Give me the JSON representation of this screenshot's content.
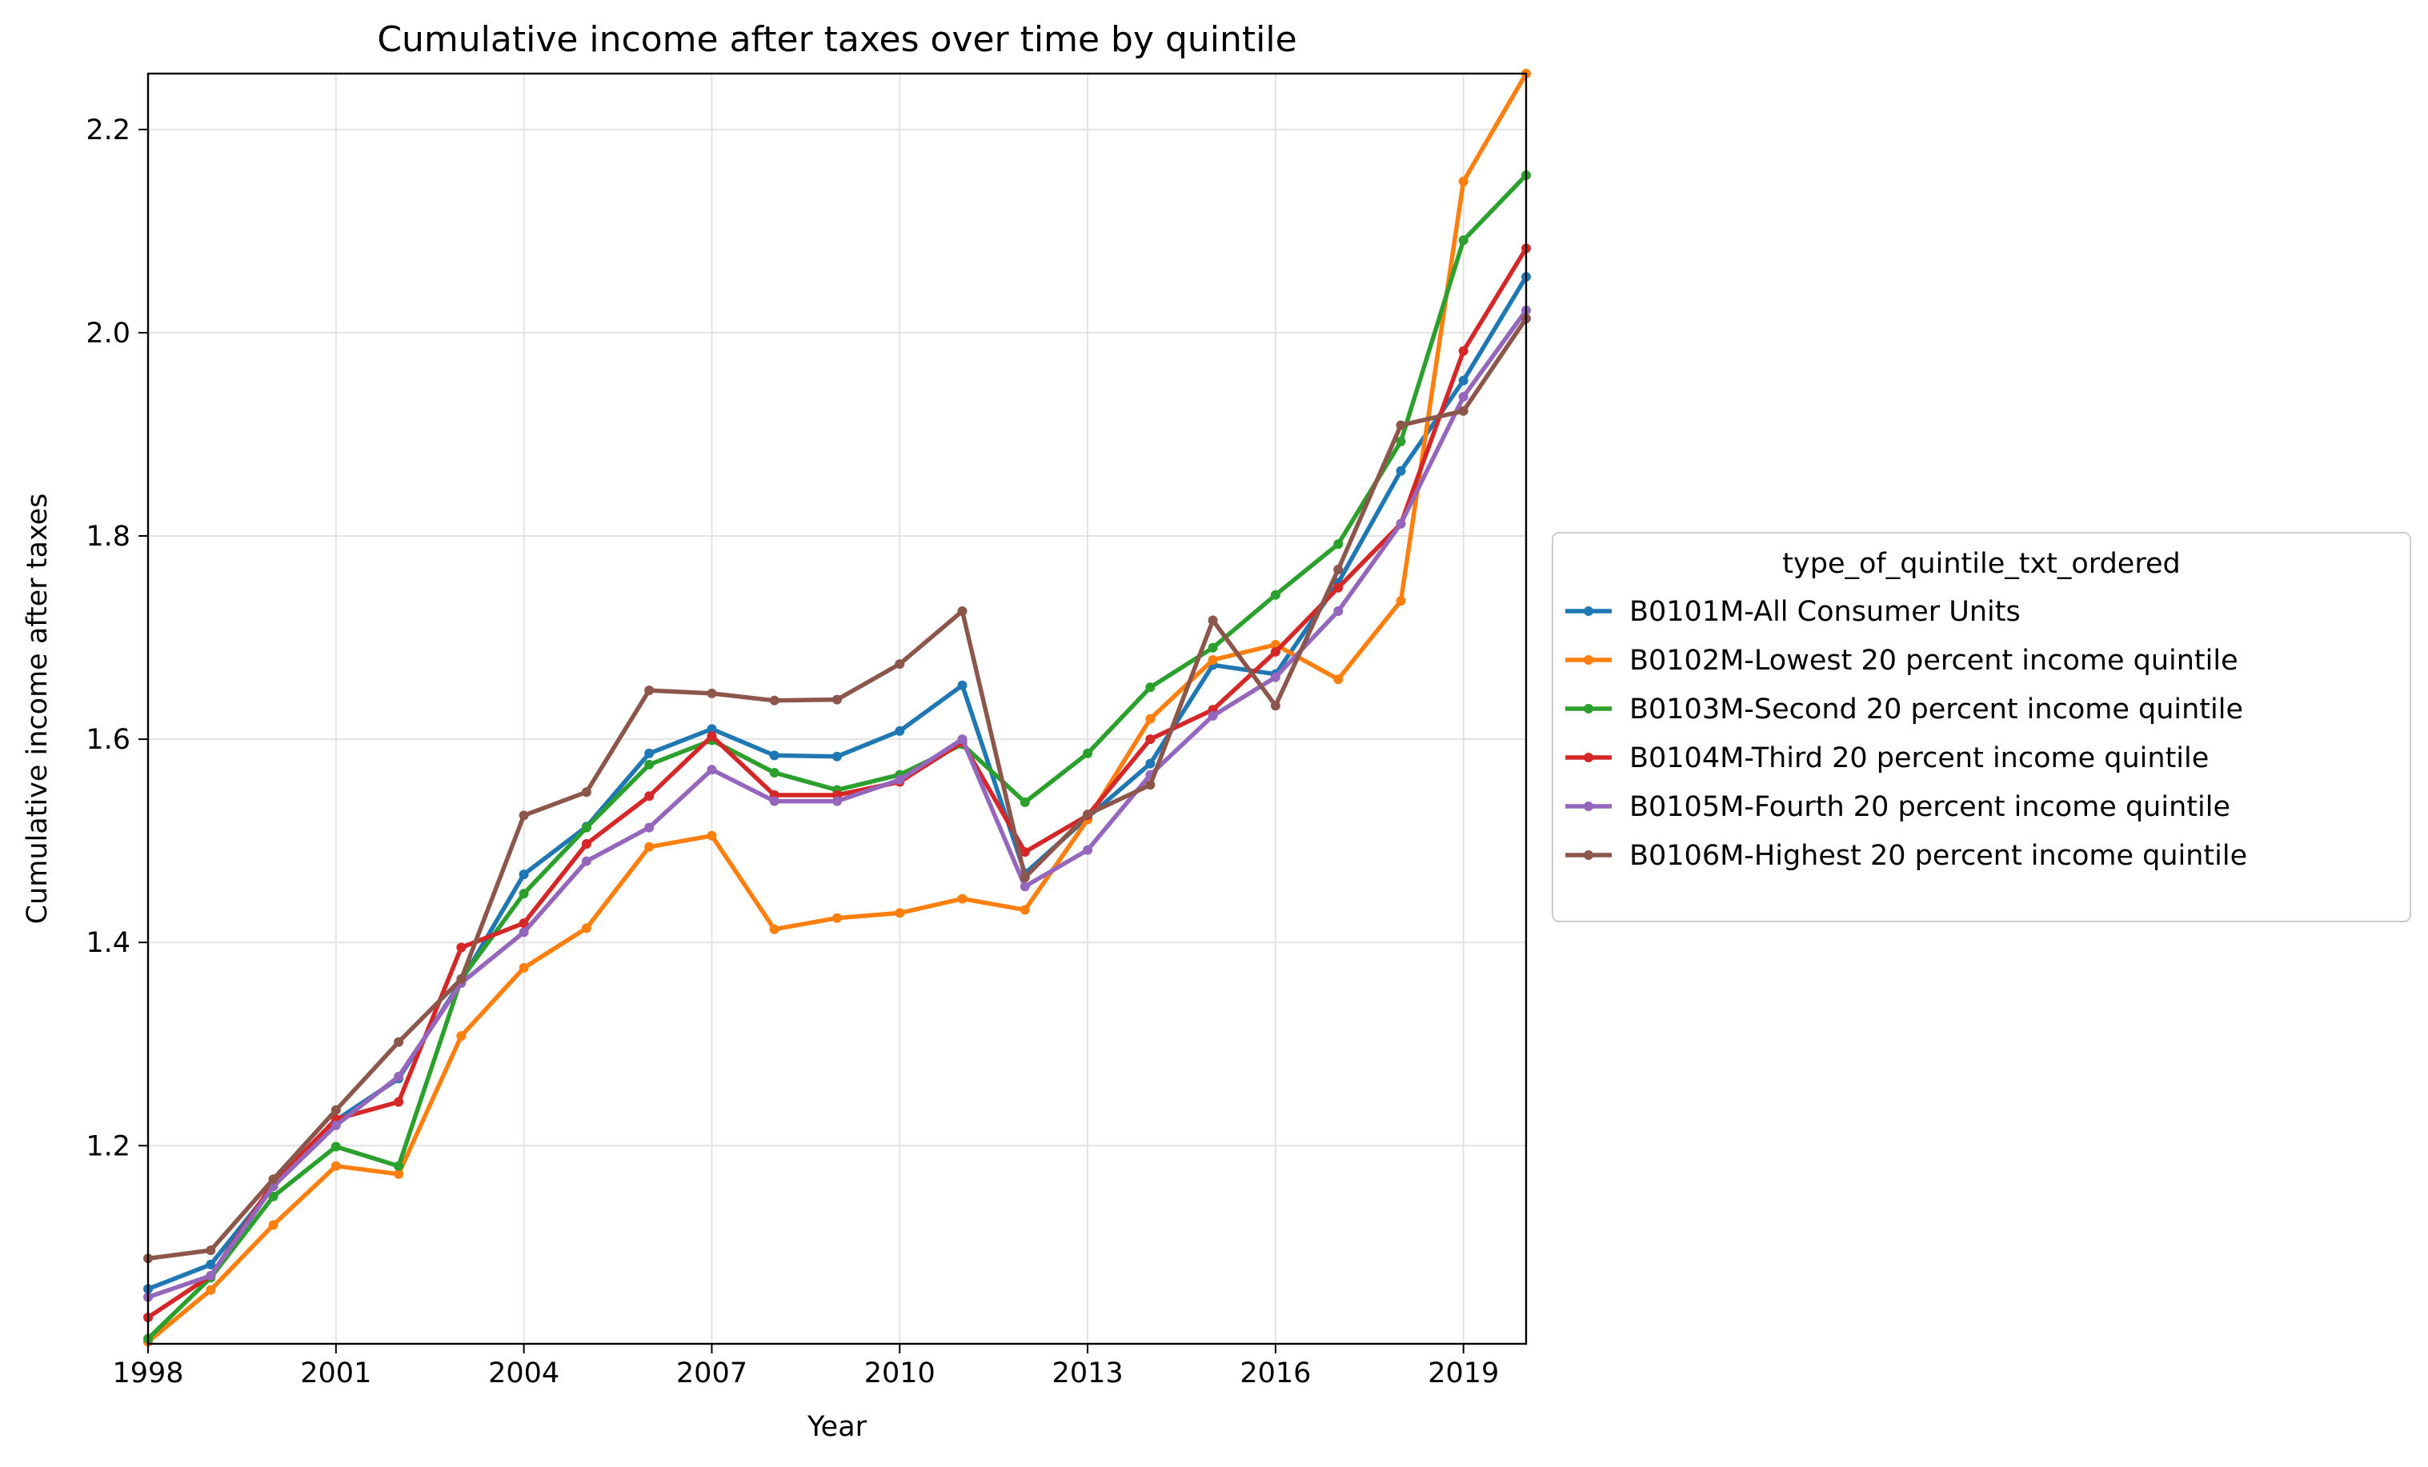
{
  "chart_data": {
    "type": "line",
    "title": "Cumulative income after taxes over time by quintile",
    "xlabel": "Year",
    "ylabel": "Cumulative income after taxes",
    "xlim": [
      1998,
      2020
    ],
    "ylim": [
      1.005,
      2.255
    ],
    "xticks": [
      1998,
      2001,
      2004,
      2007,
      2010,
      2013,
      2016,
      2019
    ],
    "xtick_labels": [
      "1998",
      "2001",
      "2004",
      "2007",
      "2010",
      "2013",
      "2016",
      "2019"
    ],
    "yticks": [
      1.2,
      1.4,
      1.6,
      1.8,
      2.0,
      2.2
    ],
    "ytick_labels": [
      "1.2",
      "1.4",
      "1.6",
      "1.8",
      "2.0",
      "2.2"
    ],
    "grid": true,
    "legend": {
      "title": "type_of_quintile_txt_ordered",
      "placement": "outside-right"
    },
    "x": [
      1998,
      1999,
      2000,
      2001,
      2002,
      2003,
      2004,
      2005,
      2006,
      2007,
      2008,
      2009,
      2010,
      2011,
      2012,
      2013,
      2014,
      2015,
      2016,
      2017,
      2018,
      2019,
      2020
    ],
    "series": [
      {
        "name": "B0101M-All Consumer Units",
        "color": "#1f77b4",
        "values": [
          1.059,
          1.083,
          1.16,
          1.225,
          1.266,
          1.362,
          1.467,
          1.514,
          1.586,
          1.61,
          1.584,
          1.583,
          1.608,
          1.653,
          1.468,
          1.523,
          1.576,
          1.673,
          1.664,
          1.754,
          1.864,
          1.953,
          2.055
        ]
      },
      {
        "name": "B0102M-Lowest 20 percent income quintile",
        "color": "#ff7f0e",
        "values": [
          1.007,
          1.058,
          1.122,
          1.18,
          1.172,
          1.308,
          1.375,
          1.414,
          1.494,
          1.505,
          1.413,
          1.424,
          1.429,
          1.443,
          1.432,
          1.521,
          1.62,
          1.678,
          1.693,
          1.659,
          1.736,
          2.149,
          2.255
        ]
      },
      {
        "name": "B0103M-Second 20 percent income quintile",
        "color": "#2ca02c",
        "values": [
          1.01,
          1.07,
          1.15,
          1.199,
          1.18,
          1.364,
          1.448,
          1.513,
          1.575,
          1.599,
          1.567,
          1.55,
          1.565,
          1.595,
          1.538,
          1.586,
          1.651,
          1.69,
          1.742,
          1.792,
          1.893,
          2.091,
          2.155
        ]
      },
      {
        "name": "B0104M-Third 20 percent income quintile",
        "color": "#d62728",
        "values": [
          1.031,
          1.072,
          1.163,
          1.226,
          1.243,
          1.395,
          1.419,
          1.497,
          1.544,
          1.603,
          1.545,
          1.545,
          1.558,
          1.597,
          1.489,
          1.525,
          1.6,
          1.629,
          1.686,
          1.749,
          1.812,
          1.982,
          2.083
        ]
      },
      {
        "name": "B0105M-Fourth 20 percent income quintile",
        "color": "#9467bd",
        "values": [
          1.051,
          1.072,
          1.16,
          1.22,
          1.268,
          1.36,
          1.41,
          1.48,
          1.513,
          1.57,
          1.539,
          1.539,
          1.56,
          1.6,
          1.455,
          1.491,
          1.565,
          1.623,
          1.661,
          1.726,
          1.812,
          1.937,
          2.022
        ]
      },
      {
        "name": "B0106M-Highest 20 percent income quintile",
        "color": "#8c564b",
        "values": [
          1.089,
          1.097,
          1.167,
          1.235,
          1.302,
          1.364,
          1.525,
          1.548,
          1.648,
          1.645,
          1.638,
          1.639,
          1.674,
          1.726,
          1.464,
          1.526,
          1.555,
          1.717,
          1.633,
          1.767,
          1.909,
          1.923,
          2.014
        ]
      }
    ]
  }
}
